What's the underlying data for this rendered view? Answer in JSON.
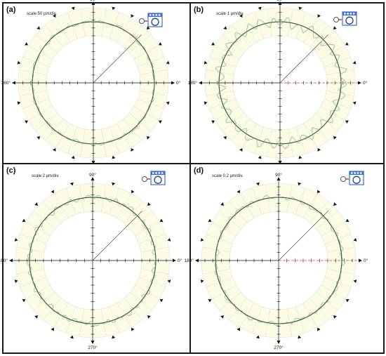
{
  "colors": {
    "ring_fill": "#fbfbe6",
    "ring_stroke": "#e3e3c8",
    "profile": "#8ec99a",
    "reference": "#3c5a33",
    "axis": "#111111",
    "red_axis": "#d04040",
    "icon_blue": "#3b6fcf"
  },
  "chart_data": [
    {
      "panel": "(a)",
      "type": "polar-line",
      "title": "",
      "scale_label": "scale 50 µm/div.",
      "angle_labels": [
        "90°",
        "0°",
        "270°",
        "180°"
      ],
      "icon": "roundness-measurement-icon",
      "pointer_angle_deg": 45,
      "series": [
        {
          "name": "",
          "role": "measured-profile",
          "mean_radius_div": 3.45,
          "amplitude_div": 0.22,
          "lobes": 22
        },
        {
          "name": "",
          "role": "reference-circle",
          "radius_div": 3.4
        }
      ]
    },
    {
      "panel": "(b)",
      "type": "polar-line",
      "title": "",
      "scale_label": "scale 1 µm/div.",
      "angle_labels": [
        "90°",
        "0°",
        "270°",
        "180°"
      ],
      "icon": "roundness-measurement-icon",
      "pointer_angle_deg": 45,
      "series": [
        {
          "name": "",
          "role": "measured-profile",
          "mean_radius_div": 3.2,
          "amplitude_div": 0.75,
          "lobes": 30
        },
        {
          "name": "",
          "role": "reference-circle",
          "radius_div": 3.2
        }
      ]
    },
    {
      "panel": "(c)",
      "type": "polar-line",
      "title": "",
      "scale_label": "scale  2 µm/div.",
      "angle_labels": [
        "90°",
        "0°",
        "270°",
        "180°"
      ],
      "icon": "roundness-measurement-icon",
      "pointer_angle_deg": 45,
      "series": [
        {
          "name": "",
          "role": "measured-profile",
          "mean_radius_div": 3.25,
          "amplitude_div": 0.45,
          "lobes": 26
        },
        {
          "name": "",
          "role": "reference-circle",
          "radius_div": 3.25
        }
      ]
    },
    {
      "panel": "(d)",
      "type": "polar-line",
      "title": "",
      "scale_label": "scale  0.2 µm/div.",
      "angle_labels": [
        "90°",
        "0°",
        "270°",
        "180°"
      ],
      "icon": "roundness-measurement-icon",
      "pointer_angle_deg": 45,
      "series": [
        {
          "name": "",
          "role": "measured-profile",
          "mean_radius_div": 3.25,
          "amplitude_div": 0.35,
          "lobes": 28
        },
        {
          "name": "",
          "role": "reference-circle",
          "radius_div": 3.25
        }
      ]
    }
  ]
}
